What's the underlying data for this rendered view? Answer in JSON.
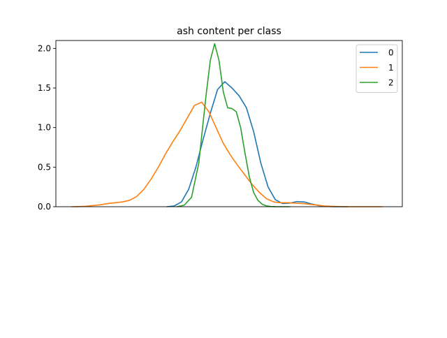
{
  "chart_data": {
    "type": "line",
    "title": "ash content per class",
    "xlabel": "",
    "ylabel": "",
    "xlim": [
      1.2,
      3.6
    ],
    "ylim": [
      0,
      2.1
    ],
    "yticks": [
      0.0,
      0.5,
      1.0,
      1.5,
      2.0
    ],
    "ytick_labels": [
      "0.0",
      "0.5",
      "1.0",
      "1.5",
      "2.0"
    ],
    "x_ticks_visible": false,
    "grid": false,
    "legend_position": "top-right",
    "series": [
      {
        "name": "0",
        "color": "#1f77b4",
        "x": [
          1.97,
          2.02,
          2.07,
          2.12,
          2.17,
          2.22,
          2.27,
          2.32,
          2.37,
          2.42,
          2.47,
          2.52,
          2.57,
          2.62,
          2.67,
          2.72,
          2.77,
          2.82,
          2.87,
          2.92,
          2.97,
          3.02,
          3.07,
          3.12,
          3.17,
          3.22
        ],
        "y": [
          0.0,
          0.01,
          0.06,
          0.22,
          0.5,
          0.85,
          1.18,
          1.48,
          1.58,
          1.5,
          1.4,
          1.25,
          0.95,
          0.55,
          0.25,
          0.09,
          0.04,
          0.045,
          0.065,
          0.06,
          0.035,
          0.015,
          0.005,
          0.0,
          0.0,
          0.0
        ]
      },
      {
        "name": "1",
        "color": "#ff7f0e",
        "x": [
          1.31,
          1.36,
          1.41,
          1.46,
          1.51,
          1.56,
          1.61,
          1.66,
          1.71,
          1.76,
          1.81,
          1.86,
          1.91,
          1.96,
          2.01,
          2.06,
          2.11,
          2.16,
          2.21,
          2.26,
          2.31,
          2.36,
          2.41,
          2.46,
          2.51,
          2.56,
          2.61,
          2.66,
          2.71,
          2.76,
          2.81,
          2.86,
          2.91,
          2.96,
          3.01,
          3.06,
          3.11,
          3.16,
          3.21,
          3.26,
          3.31,
          3.36,
          3.41,
          3.46
        ],
        "y": [
          0.0,
          0.002,
          0.006,
          0.015,
          0.025,
          0.04,
          0.05,
          0.06,
          0.08,
          0.13,
          0.22,
          0.35,
          0.5,
          0.67,
          0.82,
          0.96,
          1.12,
          1.28,
          1.32,
          1.2,
          1.0,
          0.8,
          0.65,
          0.52,
          0.4,
          0.28,
          0.18,
          0.1,
          0.06,
          0.05,
          0.05,
          0.045,
          0.04,
          0.03,
          0.02,
          0.01,
          0.005,
          0.002,
          0.0,
          0.0,
          0.0,
          0.0,
          0.0,
          0.0
        ]
      },
      {
        "name": "2",
        "color": "#2ca02c",
        "x": [
          2.04,
          2.09,
          2.14,
          2.19,
          2.24,
          2.27,
          2.3,
          2.33,
          2.36,
          2.39,
          2.42,
          2.45,
          2.48,
          2.51,
          2.54,
          2.57,
          2.6,
          2.63,
          2.66,
          2.69,
          2.72,
          2.77,
          2.82
        ],
        "y": [
          0.0,
          0.02,
          0.12,
          0.55,
          1.4,
          1.85,
          2.06,
          1.85,
          1.45,
          1.25,
          1.24,
          1.2,
          1.0,
          0.68,
          0.38,
          0.18,
          0.08,
          0.03,
          0.01,
          0.003,
          0.001,
          0.0,
          0.0
        ]
      }
    ]
  }
}
